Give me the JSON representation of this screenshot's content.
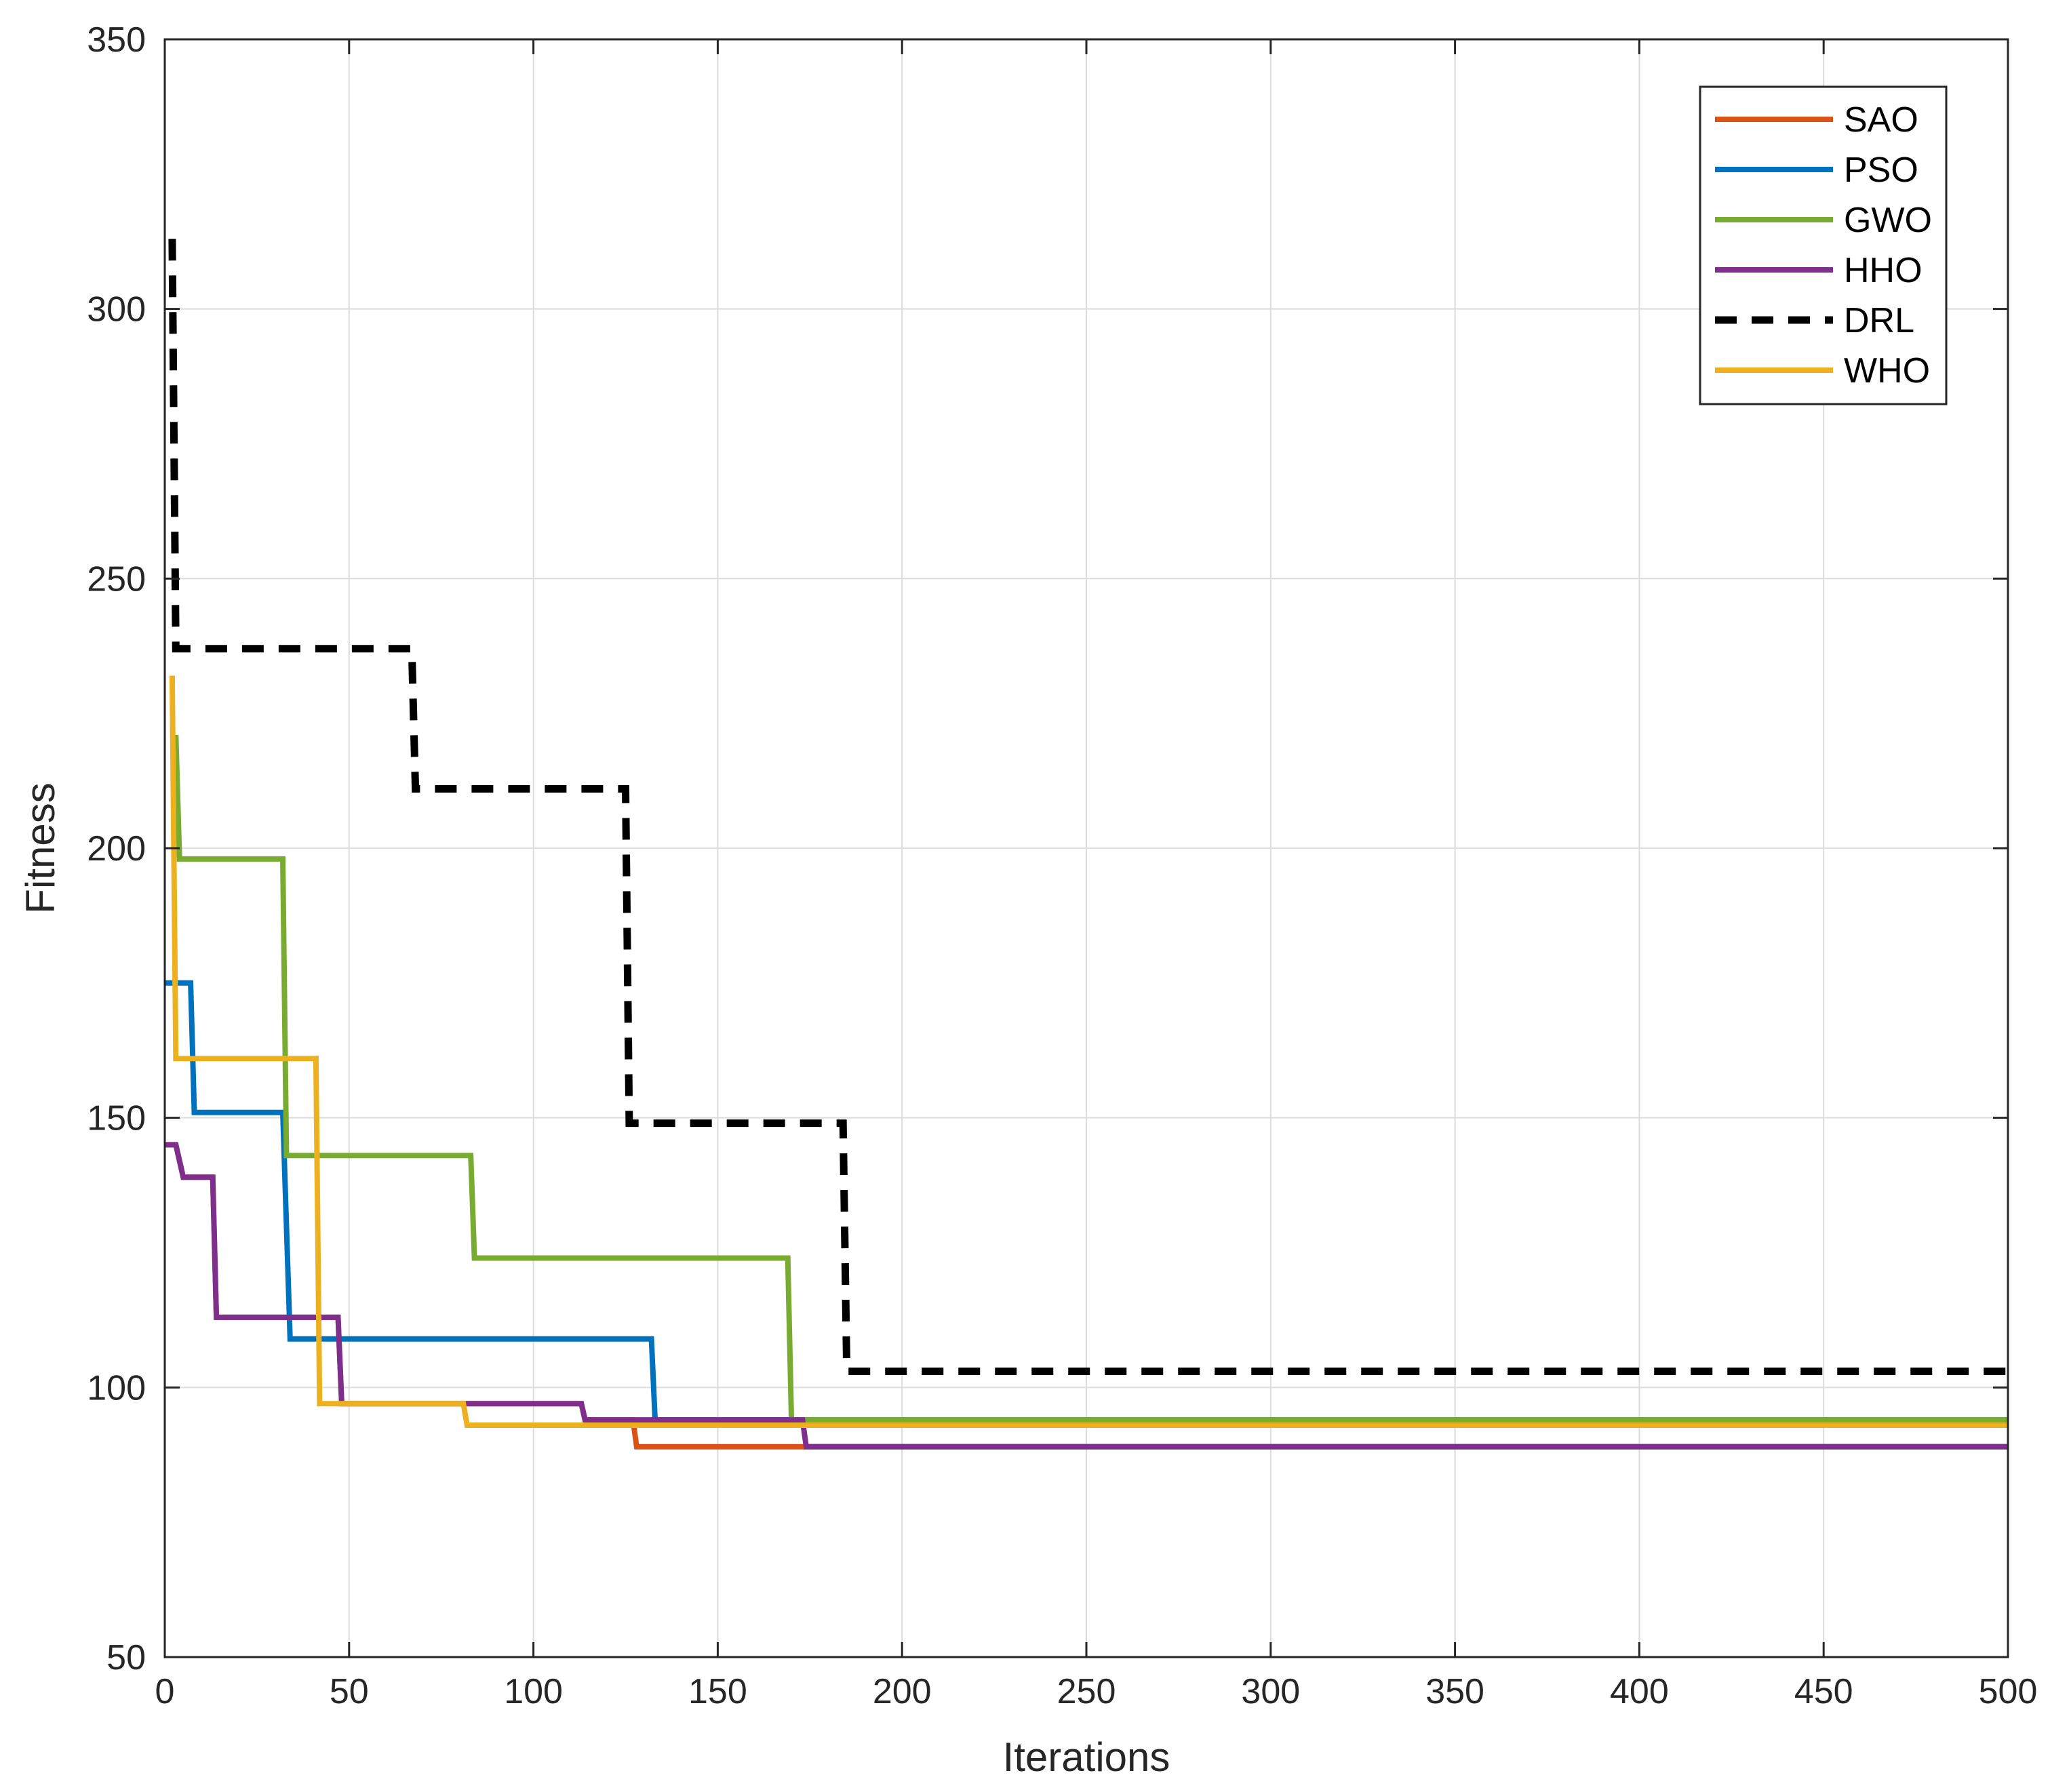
{
  "chart_data": {
    "type": "line",
    "title": "",
    "xlabel": "Iterations",
    "ylabel": "Fitness",
    "xlim": [
      0,
      500
    ],
    "ylim": [
      50,
      350
    ],
    "xticks": [
      0,
      50,
      100,
      150,
      200,
      250,
      300,
      350,
      400,
      450,
      500
    ],
    "yticks": [
      50,
      100,
      150,
      200,
      250,
      300,
      350
    ],
    "grid": true,
    "legend_position": "top-right",
    "series": [
      {
        "name": "SAO",
        "color": "#D95319",
        "dashed": false,
        "points": [
          [
            0,
            145
          ],
          [
            3,
            145
          ],
          [
            5,
            139
          ],
          [
            13,
            139
          ],
          [
            14,
            113
          ],
          [
            47,
            113
          ],
          [
            48,
            97
          ],
          [
            113,
            97
          ],
          [
            114,
            94
          ],
          [
            127,
            94
          ],
          [
            128,
            89
          ],
          [
            500,
            89
          ]
        ]
      },
      {
        "name": "PSO",
        "color": "#0072BD",
        "dashed": false,
        "points": [
          [
            0,
            175
          ],
          [
            7,
            175
          ],
          [
            8,
            151
          ],
          [
            32,
            151
          ],
          [
            34,
            109
          ],
          [
            132,
            109
          ],
          [
            133,
            94
          ],
          [
            500,
            94
          ]
        ]
      },
      {
        "name": "GWO",
        "color": "#77AC30",
        "dashed": false,
        "points": [
          [
            3,
            221
          ],
          [
            4,
            198
          ],
          [
            32,
            198
          ],
          [
            33,
            143
          ],
          [
            83,
            143
          ],
          [
            84,
            124
          ],
          [
            169,
            124
          ],
          [
            170,
            94
          ],
          [
            500,
            94
          ]
        ]
      },
      {
        "name": "HHO",
        "color": "#7E2F8E",
        "dashed": false,
        "points": [
          [
            0,
            145
          ],
          [
            3,
            145
          ],
          [
            5,
            139
          ],
          [
            13,
            139
          ],
          [
            14,
            113
          ],
          [
            47,
            113
          ],
          [
            48,
            97
          ],
          [
            113,
            97
          ],
          [
            114,
            94
          ],
          [
            173,
            94
          ],
          [
            174,
            89
          ],
          [
            500,
            89
          ]
        ]
      },
      {
        "name": "DRL",
        "color": "#000000",
        "dashed": true,
        "points": [
          [
            2,
            313
          ],
          [
            3,
            237
          ],
          [
            67,
            237
          ],
          [
            68,
            211
          ],
          [
            125,
            211
          ],
          [
            126,
            149
          ],
          [
            184,
            149
          ],
          [
            185,
            103
          ],
          [
            500,
            103
          ]
        ]
      },
      {
        "name": "WHO",
        "color": "#EDB120",
        "dashed": false,
        "points": [
          [
            2,
            232
          ],
          [
            3,
            161
          ],
          [
            41,
            161
          ],
          [
            42,
            97
          ],
          [
            81,
            97
          ],
          [
            82,
            93
          ],
          [
            500,
            93
          ]
        ]
      }
    ]
  }
}
